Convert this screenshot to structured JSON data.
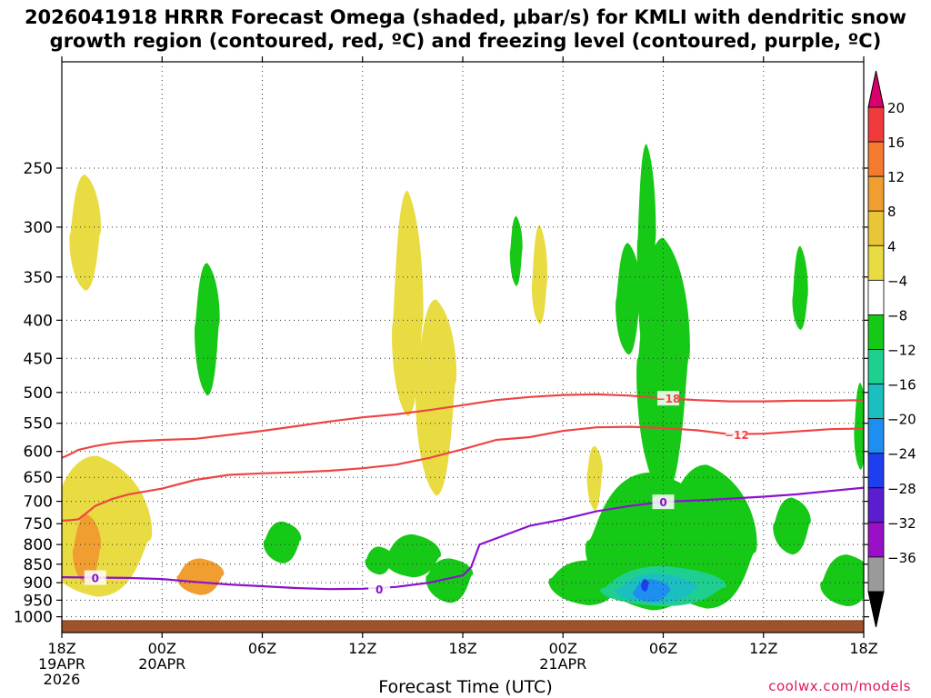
{
  "chart_data": {
    "type": "contour",
    "title_line1": "2026041918 HRRR Forecast Omega (shaded, μbar/s) for KMLI with dendritic snow",
    "title_line2": "growth region (contoured, red, ºC) and freezing level (contoured, purple, ºC)",
    "xlabel": "Forecast Time (UTC)",
    "credit": "coolwx.com/models",
    "x_axis": {
      "unit": "forecast hour",
      "range": [
        0,
        48
      ],
      "ticks": [
        {
          "x": 0,
          "labels": [
            "18Z",
            "19APR",
            "2026"
          ]
        },
        {
          "x": 6,
          "labels": [
            "00Z",
            "20APR"
          ]
        },
        {
          "x": 12,
          "labels": [
            "06Z"
          ]
        },
        {
          "x": 18,
          "labels": [
            "12Z"
          ]
        },
        {
          "x": 24,
          "labels": [
            "18Z"
          ]
        },
        {
          "x": 30,
          "labels": [
            "00Z",
            "21APR"
          ]
        },
        {
          "x": 36,
          "labels": [
            "06Z"
          ]
        },
        {
          "x": 42,
          "labels": [
            "12Z"
          ]
        },
        {
          "x": 48,
          "labels": [
            "18Z"
          ]
        }
      ]
    },
    "y_axis": {
      "unit": "hPa",
      "scale": "log-pressure",
      "range": [
        1050,
        180
      ],
      "ticks": [
        "250",
        "300",
        "350",
        "400",
        "450",
        "500",
        "550",
        "600",
        "650",
        "700",
        "750",
        "800",
        "850",
        "900",
        "950",
        "1000"
      ]
    },
    "colorbar": {
      "labels": [
        "20",
        "16",
        "12",
        "8",
        "4",
        "−4",
        "−8",
        "−12",
        "−16",
        "−20",
        "−24",
        "−28",
        "−32",
        "−36"
      ],
      "colors": [
        "#d9006c",
        "#ef3b3b",
        "#f47a30",
        "#f09e2f",
        "#e8c638",
        "#e8dc42",
        "#ffffff",
        "#16c916",
        "#1fcf8f",
        "#1bbfc0",
        "#1e8ff0",
        "#1e3ff0",
        "#5a1ed0",
        "#9a10c8",
        "#9a9a9a",
        "#000000"
      ]
    },
    "terrain_color": "#a0522d",
    "contour_colors": {
      "dgz": "#ee4444",
      "freezing": "#8a12cc"
    },
    "contour_labels": {
      "dgz_upper": "−18",
      "dgz_lower": "−12",
      "freezing": "0"
    },
    "lines": {
      "dgz_upper": [
        [
          0,
          612
        ],
        [
          0.5,
          605
        ],
        [
          1,
          597
        ],
        [
          2,
          590
        ],
        [
          3,
          585
        ],
        [
          4,
          582
        ],
        [
          6,
          579
        ],
        [
          8,
          577
        ],
        [
          10,
          570
        ],
        [
          12,
          563
        ],
        [
          14,
          555
        ],
        [
          16,
          547
        ],
        [
          18,
          540
        ],
        [
          20,
          535
        ],
        [
          22,
          528
        ],
        [
          24,
          520
        ],
        [
          26,
          512
        ],
        [
          28,
          507
        ],
        [
          30,
          504
        ],
        [
          32,
          503
        ],
        [
          34,
          505
        ],
        [
          36,
          509
        ],
        [
          38,
          512
        ],
        [
          40,
          514
        ],
        [
          42,
          514
        ],
        [
          44,
          513
        ],
        [
          46,
          513
        ],
        [
          48,
          512
        ]
      ],
      "dgz_lower": [
        [
          0,
          743
        ],
        [
          0.5,
          742
        ],
        [
          1,
          740
        ],
        [
          2,
          710
        ],
        [
          3,
          695
        ],
        [
          4,
          685
        ],
        [
          6,
          673
        ],
        [
          8,
          655
        ],
        [
          10,
          645
        ],
        [
          12,
          642
        ],
        [
          14,
          640
        ],
        [
          16,
          637
        ],
        [
          18,
          632
        ],
        [
          20,
          625
        ],
        [
          22,
          612
        ],
        [
          24,
          596
        ],
        [
          26,
          579
        ],
        [
          28,
          574
        ],
        [
          30,
          563
        ],
        [
          32,
          557
        ],
        [
          34,
          556
        ],
        [
          36,
          558
        ],
        [
          38,
          562
        ],
        [
          40,
          569
        ],
        [
          42,
          568
        ],
        [
          44,
          564
        ],
        [
          46,
          560
        ],
        [
          48,
          559
        ]
      ],
      "freezing": [
        [
          0,
          885
        ],
        [
          2,
          886
        ],
        [
          4,
          887
        ],
        [
          6,
          890
        ],
        [
          8,
          898
        ],
        [
          10,
          905
        ],
        [
          12,
          910
        ],
        [
          14,
          915
        ],
        [
          16,
          918
        ],
        [
          18,
          917
        ],
        [
          20,
          912
        ],
        [
          22,
          900
        ],
        [
          24,
          880
        ],
        [
          24.5,
          858
        ],
        [
          25,
          800
        ],
        [
          26,
          785
        ],
        [
          28,
          755
        ],
        [
          30,
          740
        ],
        [
          32,
          722
        ],
        [
          34,
          710
        ],
        [
          36,
          701
        ],
        [
          38,
          698
        ],
        [
          40,
          694
        ],
        [
          42,
          690
        ],
        [
          44,
          685
        ],
        [
          46,
          678
        ],
        [
          48,
          671
        ]
      ]
    },
    "omega_regions": [
      {
        "color": "#e8dc42",
        "cx": 2.1,
        "cy": 790,
        "rx": 3.5,
        "ry_top": 608,
        "ry_bot": 940
      },
      {
        "color": "#e8dc42",
        "cx": 1.4,
        "cy": 306,
        "rx": 1.0,
        "ry_top": 255,
        "ry_bot": 365
      },
      {
        "color": "#e8dc42",
        "cx": 20.7,
        "cy": 405,
        "rx": 1.0,
        "ry_top": 268,
        "ry_bot": 538
      },
      {
        "color": "#e8dc42",
        "cx": 22.4,
        "cy": 485,
        "rx": 1.3,
        "ry_top": 375,
        "ry_bot": 688
      },
      {
        "color": "#e8dc42",
        "cx": 28.6,
        "cy": 355,
        "rx": 0.5,
        "ry_top": 298,
        "ry_bot": 405
      },
      {
        "color": "#e8dc42",
        "cx": 31.9,
        "cy": 640,
        "rx": 0.5,
        "ry_top": 590,
        "ry_bot": 720
      },
      {
        "color": "#f09e2f",
        "cx": 1.5,
        "cy": 810,
        "rx": 0.9,
        "ry_top": 728,
        "ry_bot": 905
      },
      {
        "color": "#f09e2f",
        "cx": 8.3,
        "cy": 880,
        "rx": 1.5,
        "ry_top": 835,
        "ry_bot": 935
      },
      {
        "color": "#16c916",
        "cx": 8.7,
        "cy": 405,
        "rx": 0.8,
        "ry_top": 335,
        "ry_bot": 505
      },
      {
        "color": "#16c916",
        "cx": 13.2,
        "cy": 790,
        "rx": 1.2,
        "ry_top": 745,
        "ry_bot": 848
      },
      {
        "color": "#16c916",
        "cx": 19.0,
        "cy": 838,
        "rx": 0.9,
        "ry_top": 805,
        "ry_bot": 878
      },
      {
        "color": "#16c916",
        "cx": 21.0,
        "cy": 832,
        "rx": 1.8,
        "ry_top": 775,
        "ry_bot": 885
      },
      {
        "color": "#16c916",
        "cx": 23.2,
        "cy": 880,
        "rx": 1.5,
        "ry_top": 835,
        "ry_bot": 958
      },
      {
        "color": "#16c916",
        "cx": 27.2,
        "cy": 322,
        "rx": 0.4,
        "ry_top": 290,
        "ry_bot": 360
      },
      {
        "color": "#16c916",
        "cx": 31.5,
        "cy": 888,
        "rx": 2.5,
        "ry_top": 840,
        "ry_bot": 965
      },
      {
        "color": "#16c916",
        "cx": 35.3,
        "cy": 790,
        "rx": 4.2,
        "ry_top": 640,
        "ry_bot": 980
      },
      {
        "color": "#16c916",
        "cx": 38.6,
        "cy": 820,
        "rx": 3.2,
        "ry_top": 625,
        "ry_bot": 975
      },
      {
        "color": "#16c916",
        "cx": 36.0,
        "cy": 450,
        "rx": 1.7,
        "ry_top": 310,
        "ry_bot": 690
      },
      {
        "color": "#16c916",
        "cx": 35.0,
        "cy": 312,
        "rx": 0.6,
        "ry_top": 232,
        "ry_bot": 470
      },
      {
        "color": "#16c916",
        "cx": 33.9,
        "cy": 375,
        "rx": 0.8,
        "ry_top": 315,
        "ry_bot": 445
      },
      {
        "color": "#16c916",
        "cx": 43.7,
        "cy": 750,
        "rx": 1.2,
        "ry_top": 692,
        "ry_bot": 825
      },
      {
        "color": "#16c916",
        "cx": 44.2,
        "cy": 372,
        "rx": 0.5,
        "ry_top": 318,
        "ry_bot": 412
      },
      {
        "color": "#16c916",
        "cx": 47.0,
        "cy": 898,
        "rx": 1.7,
        "ry_top": 825,
        "ry_bot": 968
      },
      {
        "color": "#16c916",
        "cx": 47.8,
        "cy": 560,
        "rx": 0.4,
        "ry_top": 485,
        "ry_bot": 635
      },
      {
        "color": "#1fcf8f",
        "cx": 36.0,
        "cy": 915,
        "rx": 4.0,
        "ry_top": 855,
        "ry_bot": 968
      },
      {
        "color": "#1bbfc0",
        "cx": 35.6,
        "cy": 920,
        "rx": 2.6,
        "ry_top": 875,
        "ry_bot": 960
      },
      {
        "color": "#1e8ff0",
        "cx": 35.3,
        "cy": 925,
        "rx": 1.2,
        "ry_top": 890,
        "ry_bot": 955
      },
      {
        "color": "#1e3ff0",
        "cx": 34.9,
        "cy": 905,
        "rx": 0.25,
        "ry_top": 890,
        "ry_bot": 925
      }
    ]
  }
}
